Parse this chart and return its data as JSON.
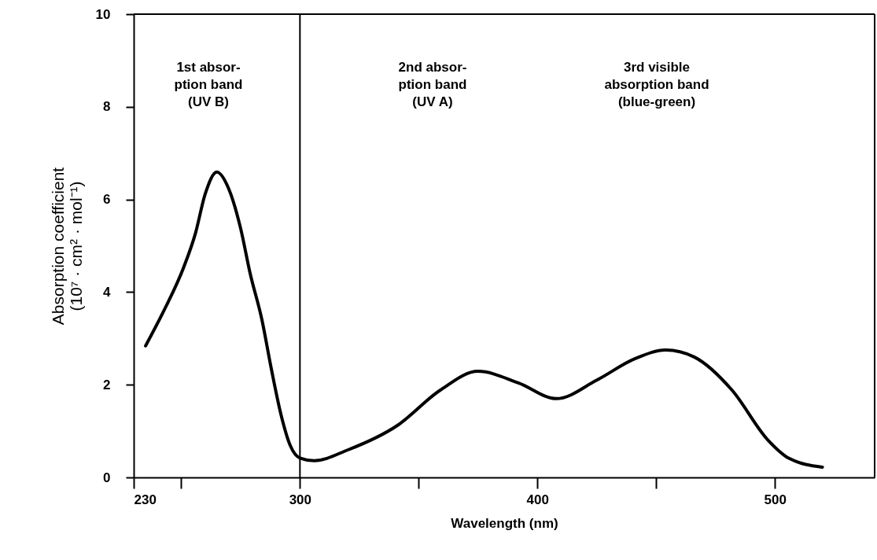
{
  "chart_data": {
    "type": "line",
    "xlabel": "Wavelength (nm)",
    "ylabel": "Absorption coefficient\n(10⁷ · cm² · mol⁻¹)",
    "x": [
      235,
      243,
      251,
      256,
      260,
      265,
      270,
      275,
      279,
      284,
      288,
      292,
      296,
      300,
      306,
      320,
      341,
      359,
      375,
      392,
      408,
      425,
      441,
      454,
      466,
      482,
      497,
      506,
      520
    ],
    "series": [
      {
        "color": "#000000",
        "values": [
          2.84,
          3.63,
          4.53,
          5.27,
          6.1,
          6.59,
          6.23,
          5.38,
          4.41,
          3.4,
          2.33,
          1.36,
          0.68,
          0.42,
          0.36,
          0.59,
          1.12,
          1.88,
          2.29,
          2.04,
          1.7,
          2.1,
          2.56,
          2.75,
          2.6,
          1.88,
          0.81,
          0.41,
          0.22
        ]
      }
    ],
    "xlim": [
      230,
      542
    ],
    "xticks": [
      230,
      {
        "value": 250,
        "label": null
      },
      300,
      {
        "value": 350,
        "label": null
      },
      400,
      {
        "value": 450,
        "label": null
      },
      500
    ],
    "ylim": [
      0,
      10
    ],
    "yticks": [
      0,
      2,
      4,
      6,
      8,
      10
    ],
    "ref_lines": [
      {
        "axis": "x",
        "value": 300,
        "color": "#000000"
      }
    ],
    "annotations": [
      "1st absor-\nption band\n(UV B)",
      "2nd absor-\nption band\n(UV A)",
      "3rd visible\nabsorption band\n(blue-green)"
    ],
    "grid": false,
    "marker": "none",
    "line_style": "solid"
  }
}
